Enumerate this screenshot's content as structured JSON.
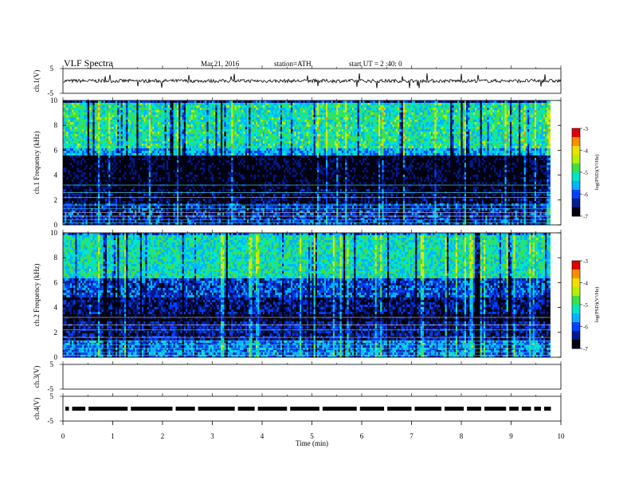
{
  "header": {
    "title": "VLF Spectra",
    "date": "Mar.21, 2016",
    "station": "station=ATH",
    "start_time": "start UT = 2 :40: 0"
  },
  "colors": {
    "spectrogram": [
      "#000010",
      "#001a8c",
      "#0040ff",
      "#00b4ff",
      "#00e6c8",
      "#40e040",
      "#b4f000",
      "#f0e000",
      "#ff8c00",
      "#e00000",
      "#ffffff"
    ]
  },
  "chart_data": [
    {
      "type": "line",
      "panel": "ch1-waveform",
      "ylabel": "ch.1(V)",
      "ylim": [
        -5,
        5
      ],
      "yticks": [
        "5",
        "-5"
      ],
      "xlim": [
        0,
        10
      ],
      "baseline": 0,
      "noise_amplitude": 0.7
    },
    {
      "type": "heatmap",
      "panel": "ch1-spectrogram",
      "ylabel": "ch.1 Frequency (kHz)",
      "ylim": [
        0,
        10
      ],
      "yticks": [
        "0",
        "2",
        "4",
        "6",
        "8",
        "10"
      ],
      "xlim": [
        0,
        9.8
      ],
      "bands_khz": [
        {
          "from": 0,
          "to": 1.8,
          "level": -6.2
        },
        {
          "from": 1.8,
          "to": 3.0,
          "level": -6.7
        },
        {
          "from": 3.0,
          "to": 5.7,
          "level": -6.9
        },
        {
          "from": 5.7,
          "to": 6.3,
          "level": -5.6
        },
        {
          "from": 6.3,
          "to": 10,
          "level": -5.1
        }
      ],
      "colorbar": {
        "label": "log(PSD)(V²/Hz)",
        "ticks": [
          "-3",
          "-4",
          "-5",
          "-6",
          "-7"
        ],
        "range": [
          -7,
          -3
        ]
      }
    },
    {
      "type": "heatmap",
      "panel": "ch2-spectrogram",
      "ylabel": "ch.2 Frequency (kHz)",
      "ylim": [
        0,
        10
      ],
      "yticks": [
        "0",
        "2",
        "4",
        "6",
        "8",
        "10"
      ],
      "xlim": [
        0,
        9.8
      ],
      "bands_khz": [
        {
          "from": 0,
          "to": 1.5,
          "level": -5.8
        },
        {
          "from": 1.5,
          "to": 3.0,
          "level": -6.4
        },
        {
          "from": 3.0,
          "to": 3.6,
          "level": -6.9
        },
        {
          "from": 3.6,
          "to": 4.9,
          "level": -6.5
        },
        {
          "from": 4.9,
          "to": 6.5,
          "level": -6.1
        },
        {
          "from": 6.5,
          "to": 10,
          "level": -5.2
        }
      ],
      "colorbar": {
        "label": "log(PSD)(V²/Hz)",
        "ticks": [
          "-3",
          "-4",
          "-5",
          "-6",
          "-7"
        ],
        "range": [
          -7,
          -3
        ]
      }
    },
    {
      "type": "line",
      "panel": "ch3-waveform",
      "ylabel": "ch.3(V)",
      "ylim": [
        -5,
        5
      ],
      "yticks": [
        "5",
        "-5"
      ],
      "xlim": [
        0,
        10
      ],
      "empty": true
    },
    {
      "type": "line",
      "panel": "ch4-waveform",
      "ylabel": "ch.4(V)",
      "ylim": [
        -5,
        5
      ],
      "yticks": [
        "5",
        "-5"
      ],
      "xlim": [
        0,
        9.8
      ],
      "baseline": 0,
      "dropouts_min": [
        0.12,
        0.45,
        1.3,
        2.2,
        2.65,
        3.45,
        3.85,
        4.5,
        5.15,
        5.9,
        6.45,
        7.0,
        7.6,
        8.05,
        8.4,
        8.9,
        9.15,
        9.4,
        9.6
      ]
    }
  ],
  "x_axis": {
    "label": "Time (min)",
    "ticks": [
      "0",
      "1",
      "2",
      "3",
      "4",
      "5",
      "6",
      "7",
      "8",
      "9",
      "10"
    ]
  }
}
